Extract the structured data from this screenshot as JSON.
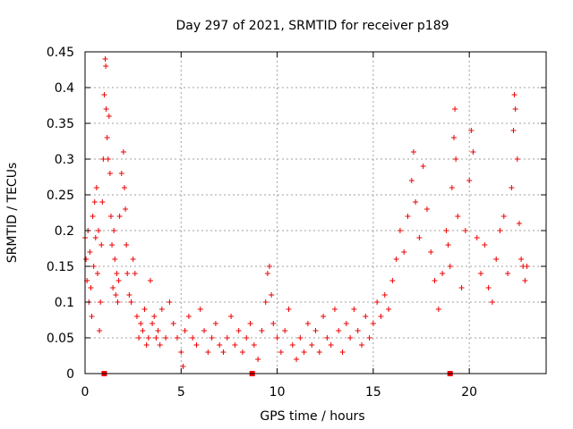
{
  "chart_data": {
    "type": "scatter",
    "title": "Day 297 of 2021, SRMTID for receiver p189",
    "xlabel": "GPS time / hours",
    "ylabel": "SRMTID / TECUs",
    "xlim": [
      0,
      24
    ],
    "ylim": [
      0,
      0.45
    ],
    "x_ticks": [
      0,
      5,
      10,
      15,
      20
    ],
    "x_tick_labels": [
      "0",
      "5",
      "10",
      "15",
      "20"
    ],
    "y_ticks": [
      0,
      0.05,
      0.1,
      0.15,
      0.2,
      0.25,
      0.3,
      0.35,
      0.4,
      0.45
    ],
    "y_tick_labels": [
      "0",
      "0.05",
      "0.1",
      "0.15",
      "0.2",
      "0.25",
      "0.3",
      "0.35",
      "0.4",
      "0.45"
    ],
    "grid": true,
    "marker": "+",
    "colors": {
      "series": "#ee0000",
      "grid": "#a0a0a0",
      "axes": "#000000"
    },
    "series": [
      {
        "name": "SRMTID",
        "marker": "+",
        "points": [
          [
            0.0,
            0.19
          ],
          [
            0.05,
            0.16
          ],
          [
            0.1,
            0.13
          ],
          [
            0.15,
            0.2
          ],
          [
            0.2,
            0.1
          ],
          [
            0.25,
            0.17
          ],
          [
            0.3,
            0.12
          ],
          [
            0.35,
            0.08
          ],
          [
            0.4,
            0.22
          ],
          [
            0.45,
            0.15
          ],
          [
            0.5,
            0.24
          ],
          [
            0.55,
            0.19
          ],
          [
            0.6,
            0.26
          ],
          [
            0.65,
            0.14
          ],
          [
            0.7,
            0.2
          ],
          [
            0.75,
            0.06
          ],
          [
            0.8,
            0.1
          ],
          [
            0.85,
            0.18
          ],
          [
            0.9,
            0.24
          ],
          [
            0.95,
            0.3
          ],
          [
            1.0,
            0.39
          ],
          [
            1.05,
            0.44
          ],
          [
            1.08,
            0.43
          ],
          [
            1.1,
            0.37
          ],
          [
            1.15,
            0.33
          ],
          [
            1.2,
            0.3
          ],
          [
            1.25,
            0.36
          ],
          [
            1.3,
            0.28
          ],
          [
            1.35,
            0.22
          ],
          [
            1.4,
            0.18
          ],
          [
            1.45,
            0.12
          ],
          [
            1.5,
            0.2
          ],
          [
            1.55,
            0.16
          ],
          [
            1.6,
            0.11
          ],
          [
            1.65,
            0.14
          ],
          [
            1.7,
            0.1
          ],
          [
            1.75,
            0.13
          ],
          [
            1.8,
            0.22
          ],
          [
            1.9,
            0.28
          ],
          [
            2.0,
            0.31
          ],
          [
            2.05,
            0.26
          ],
          [
            2.1,
            0.23
          ],
          [
            2.15,
            0.18
          ],
          [
            2.2,
            0.14
          ],
          [
            2.3,
            0.11
          ],
          [
            2.4,
            0.1
          ],
          [
            2.5,
            0.16
          ],
          [
            2.6,
            0.14
          ],
          [
            2.7,
            0.08
          ],
          [
            2.8,
            0.05
          ],
          [
            2.9,
            0.07
          ],
          [
            3.0,
            0.06
          ],
          [
            3.1,
            0.09
          ],
          [
            3.2,
            0.04
          ],
          [
            3.3,
            0.05
          ],
          [
            3.4,
            0.13
          ],
          [
            3.5,
            0.07
          ],
          [
            3.6,
            0.08
          ],
          [
            3.7,
            0.05
          ],
          [
            3.8,
            0.06
          ],
          [
            3.9,
            0.04
          ],
          [
            4.0,
            0.09
          ],
          [
            4.2,
            0.05
          ],
          [
            4.4,
            0.1
          ],
          [
            4.6,
            0.07
          ],
          [
            4.8,
            0.05
          ],
          [
            5.0,
            0.03
          ],
          [
            5.1,
            0.01
          ],
          [
            5.2,
            0.06
          ],
          [
            5.4,
            0.08
          ],
          [
            5.6,
            0.05
          ],
          [
            5.8,
            0.04
          ],
          [
            6.0,
            0.09
          ],
          [
            6.2,
            0.06
          ],
          [
            6.4,
            0.03
          ],
          [
            6.6,
            0.05
          ],
          [
            6.8,
            0.07
          ],
          [
            7.0,
            0.04
          ],
          [
            7.2,
            0.03
          ],
          [
            7.4,
            0.05
          ],
          [
            7.6,
            0.08
          ],
          [
            7.8,
            0.04
          ],
          [
            8.0,
            0.06
          ],
          [
            8.2,
            0.03
          ],
          [
            8.4,
            0.05
          ],
          [
            8.6,
            0.07
          ],
          [
            8.8,
            0.04
          ],
          [
            9.0,
            0.02
          ],
          [
            9.2,
            0.06
          ],
          [
            9.4,
            0.1
          ],
          [
            9.5,
            0.14
          ],
          [
            9.6,
            0.15
          ],
          [
            9.7,
            0.11
          ],
          [
            9.8,
            0.07
          ],
          [
            10.0,
            0.05
          ],
          [
            10.2,
            0.03
          ],
          [
            10.4,
            0.06
          ],
          [
            10.6,
            0.09
          ],
          [
            10.8,
            0.04
          ],
          [
            11.0,
            0.02
          ],
          [
            11.2,
            0.05
          ],
          [
            11.4,
            0.03
          ],
          [
            11.6,
            0.07
          ],
          [
            11.8,
            0.04
          ],
          [
            12.0,
            0.06
          ],
          [
            12.2,
            0.03
          ],
          [
            12.4,
            0.08
          ],
          [
            12.6,
            0.05
          ],
          [
            12.8,
            0.04
          ],
          [
            13.0,
            0.09
          ],
          [
            13.2,
            0.06
          ],
          [
            13.4,
            0.03
          ],
          [
            13.6,
            0.07
          ],
          [
            13.8,
            0.05
          ],
          [
            14.0,
            0.09
          ],
          [
            14.2,
            0.06
          ],
          [
            14.4,
            0.04
          ],
          [
            14.6,
            0.08
          ],
          [
            14.8,
            0.05
          ],
          [
            15.0,
            0.07
          ],
          [
            15.2,
            0.1
          ],
          [
            15.4,
            0.08
          ],
          [
            15.6,
            0.11
          ],
          [
            15.8,
            0.09
          ],
          [
            16.0,
            0.13
          ],
          [
            16.2,
            0.16
          ],
          [
            16.4,
            0.2
          ],
          [
            16.6,
            0.17
          ],
          [
            16.8,
            0.22
          ],
          [
            17.0,
            0.27
          ],
          [
            17.1,
            0.31
          ],
          [
            17.2,
            0.24
          ],
          [
            17.4,
            0.19
          ],
          [
            17.6,
            0.29
          ],
          [
            17.8,
            0.23
          ],
          [
            18.0,
            0.17
          ],
          [
            18.2,
            0.13
          ],
          [
            18.4,
            0.09
          ],
          [
            18.6,
            0.14
          ],
          [
            18.8,
            0.2
          ],
          [
            18.9,
            0.18
          ],
          [
            19.0,
            0.15
          ],
          [
            19.1,
            0.26
          ],
          [
            19.2,
            0.33
          ],
          [
            19.25,
            0.37
          ],
          [
            19.3,
            0.3
          ],
          [
            19.4,
            0.22
          ],
          [
            19.6,
            0.12
          ],
          [
            19.8,
            0.2
          ],
          [
            20.0,
            0.27
          ],
          [
            20.1,
            0.34
          ],
          [
            20.2,
            0.31
          ],
          [
            20.4,
            0.19
          ],
          [
            20.6,
            0.14
          ],
          [
            20.8,
            0.18
          ],
          [
            21.0,
            0.12
          ],
          [
            21.2,
            0.1
          ],
          [
            21.4,
            0.16
          ],
          [
            21.6,
            0.2
          ],
          [
            21.8,
            0.22
          ],
          [
            22.0,
            0.14
          ],
          [
            22.2,
            0.26
          ],
          [
            22.3,
            0.34
          ],
          [
            22.35,
            0.39
          ],
          [
            22.4,
            0.37
          ],
          [
            22.5,
            0.3
          ],
          [
            22.6,
            0.21
          ],
          [
            22.7,
            0.16
          ],
          [
            22.8,
            0.15
          ],
          [
            22.9,
            0.13
          ],
          [
            23.0,
            0.15
          ]
        ]
      }
    ],
    "markers_on_axis": [
      1.0,
      8.7,
      19.0
    ]
  }
}
